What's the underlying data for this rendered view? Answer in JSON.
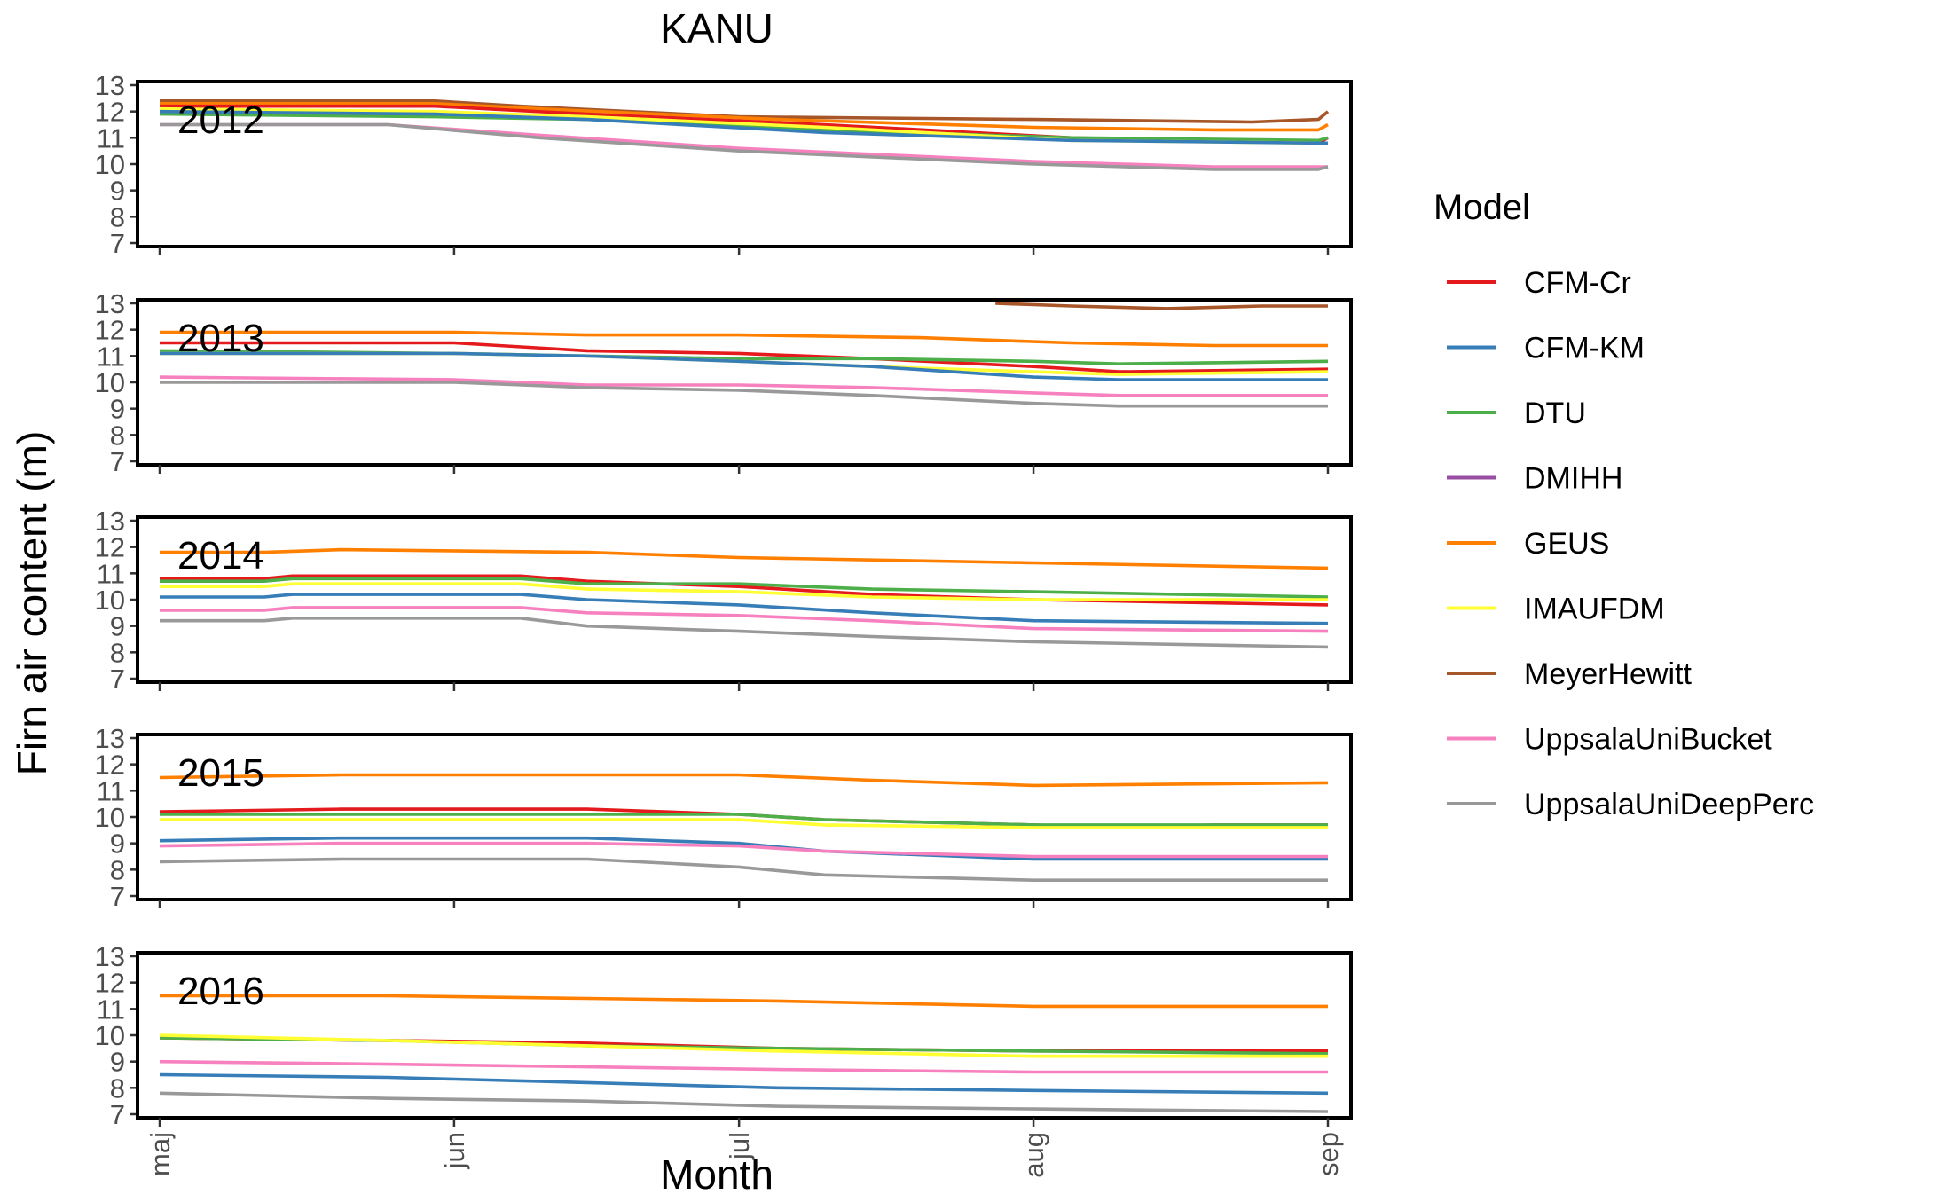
{
  "chart_data": {
    "type": "line",
    "title": "KANU",
    "xlabel": "Month",
    "ylabel": "Firn air content (m)",
    "legend_title": "Model",
    "legend_position": "right",
    "ylim": [
      7,
      13
    ],
    "yticks": [
      7,
      8,
      9,
      10,
      11,
      12,
      13
    ],
    "x_tick_labels": [
      "maj",
      "jun",
      "jul",
      "aug",
      "sep"
    ],
    "xlim": [
      "05-01",
      "09-01"
    ],
    "grid": false,
    "series_meta": [
      {
        "name": "CFM-Cr",
        "color": "#E41A1C"
      },
      {
        "name": "CFM-KM",
        "color": "#377EB8"
      },
      {
        "name": "DTU",
        "color": "#4DAF4A"
      },
      {
        "name": "DMIHH",
        "color": "#984EA3"
      },
      {
        "name": "GEUS",
        "color": "#FF7F00"
      },
      {
        "name": "IMAUFDM",
        "color": "#FFFF33"
      },
      {
        "name": "MeyerHewitt",
        "color": "#A65628"
      },
      {
        "name": "UppsalaUniBucket",
        "color": "#F781BF"
      },
      {
        "name": "UppsalaUniDeepPerc",
        "color": "#999999"
      }
    ],
    "panels": [
      {
        "label": "2012",
        "series": [
          {
            "name": "MeyerHewitt",
            "x": [
              "05-01",
              "05-30",
              "06-08",
              "07-01",
              "08-01",
              "08-24",
              "08-31",
              "09-01"
            ],
            "y": [
              12.4,
              12.4,
              12.2,
              11.8,
              11.7,
              11.6,
              11.7,
              12.0
            ]
          },
          {
            "name": "GEUS",
            "x": [
              "05-01",
              "05-30",
              "06-10",
              "07-05",
              "08-01",
              "08-20",
              "08-31",
              "09-01"
            ],
            "y": [
              12.3,
              12.3,
              12.1,
              11.7,
              11.4,
              11.3,
              11.3,
              11.5
            ]
          },
          {
            "name": "CFM-Cr",
            "x": [
              "05-01",
              "05-30",
              "06-15",
              "07-10",
              "08-05",
              "08-31",
              "09-01"
            ],
            "y": [
              12.2,
              12.2,
              11.9,
              11.5,
              11.0,
              10.8,
              11.0
            ]
          },
          {
            "name": "DTU",
            "x": [
              "05-01",
              "05-30",
              "06-15",
              "07-10",
              "08-05",
              "08-31",
              "09-01"
            ],
            "y": [
              11.9,
              11.8,
              11.7,
              11.3,
              11.0,
              10.9,
              11.0
            ]
          },
          {
            "name": "IMAUFDM",
            "x": [
              "05-01",
              "05-30",
              "06-15",
              "07-10",
              "08-05",
              "08-31",
              "09-01"
            ],
            "y": [
              12.1,
              12.0,
              11.8,
              11.4,
              10.9,
              10.8,
              10.8
            ]
          },
          {
            "name": "CFM-KM",
            "x": [
              "05-01",
              "05-30",
              "06-15",
              "07-10",
              "08-05",
              "08-31",
              "09-01"
            ],
            "y": [
              12.0,
              11.9,
              11.7,
              11.2,
              10.9,
              10.8,
              10.8
            ]
          },
          {
            "name": "UppsalaUniBucket",
            "x": [
              "05-01",
              "05-25",
              "06-10",
              "07-01",
              "08-01",
              "08-20",
              "09-01"
            ],
            "y": [
              11.5,
              11.5,
              11.1,
              10.6,
              10.1,
              9.9,
              9.9
            ]
          },
          {
            "name": "UppsalaUniDeepPerc",
            "x": [
              "05-01",
              "05-25",
              "06-10",
              "07-01",
              "08-01",
              "08-20",
              "08-31",
              "09-01"
            ],
            "y": [
              11.5,
              11.5,
              11.0,
              10.5,
              10.0,
              9.8,
              9.8,
              9.9
            ]
          }
        ]
      },
      {
        "label": "2013",
        "series": [
          {
            "name": "MeyerHewitt",
            "x": [
              "07-28",
              "08-05",
              "08-15",
              "08-25",
              "09-01"
            ],
            "y": [
              13.0,
              12.9,
              12.8,
              12.9,
              12.9
            ]
          },
          {
            "name": "GEUS",
            "x": [
              "05-01",
              "06-01",
              "06-15",
              "07-01",
              "07-20",
              "08-05",
              "08-20",
              "09-01"
            ],
            "y": [
              11.9,
              11.9,
              11.8,
              11.8,
              11.7,
              11.5,
              11.4,
              11.4
            ]
          },
          {
            "name": "CFM-Cr",
            "x": [
              "05-01",
              "06-01",
              "06-15",
              "07-01",
              "07-15",
              "08-01",
              "08-10",
              "09-01"
            ],
            "y": [
              11.5,
              11.5,
              11.2,
              11.1,
              10.9,
              10.6,
              10.4,
              10.5
            ]
          },
          {
            "name": "DTU",
            "x": [
              "05-01",
              "06-01",
              "06-15",
              "07-01",
              "07-15",
              "08-01",
              "08-10",
              "09-01"
            ],
            "y": [
              11.2,
              11.1,
              11.0,
              10.9,
              10.9,
              10.8,
              10.7,
              10.8
            ]
          },
          {
            "name": "IMAUFDM",
            "x": [
              "05-01",
              "06-01",
              "06-15",
              "07-01",
              "07-15",
              "08-01",
              "08-10",
              "09-01"
            ],
            "y": [
              11.1,
              11.1,
              11.0,
              10.8,
              10.6,
              10.4,
              10.3,
              10.4
            ]
          },
          {
            "name": "CFM-KM",
            "x": [
              "05-01",
              "06-01",
              "06-15",
              "07-01",
              "07-15",
              "08-01",
              "08-10",
              "09-01"
            ],
            "y": [
              11.1,
              11.1,
              11.0,
              10.8,
              10.6,
              10.2,
              10.1,
              10.1
            ]
          },
          {
            "name": "UppsalaUniBucket",
            "x": [
              "05-01",
              "06-01",
              "06-15",
              "07-01",
              "07-15",
              "08-01",
              "08-10",
              "09-01"
            ],
            "y": [
              10.2,
              10.1,
              9.9,
              9.9,
              9.8,
              9.6,
              9.5,
              9.5
            ]
          },
          {
            "name": "UppsalaUniDeepPerc",
            "x": [
              "05-01",
              "06-01",
              "06-15",
              "07-01",
              "07-15",
              "08-01",
              "08-10",
              "09-01"
            ],
            "y": [
              10.0,
              10.0,
              9.8,
              9.7,
              9.5,
              9.2,
              9.1,
              9.1
            ]
          }
        ]
      },
      {
        "label": "2014",
        "series": [
          {
            "name": "GEUS",
            "x": [
              "05-01",
              "05-12",
              "05-20",
              "06-15",
              "07-01",
              "08-01",
              "09-01"
            ],
            "y": [
              11.8,
              11.8,
              11.9,
              11.8,
              11.6,
              11.4,
              11.2
            ]
          },
          {
            "name": "CFM-Cr",
            "x": [
              "05-01",
              "05-12",
              "05-15",
              "06-08",
              "06-15",
              "07-01",
              "07-15",
              "08-01",
              "09-01"
            ],
            "y": [
              10.8,
              10.8,
              10.9,
              10.9,
              10.7,
              10.5,
              10.2,
              10.0,
              9.8
            ]
          },
          {
            "name": "DTU",
            "x": [
              "05-01",
              "05-12",
              "05-15",
              "06-08",
              "06-15",
              "07-01",
              "07-15",
              "08-01",
              "09-01"
            ],
            "y": [
              10.7,
              10.7,
              10.8,
              10.8,
              10.6,
              10.6,
              10.4,
              10.3,
              10.1
            ]
          },
          {
            "name": "IMAUFDM",
            "x": [
              "05-01",
              "05-12",
              "05-15",
              "06-08",
              "06-15",
              "07-01",
              "07-15",
              "08-01",
              "09-01"
            ],
            "y": [
              10.5,
              10.5,
              10.6,
              10.6,
              10.4,
              10.3,
              10.1,
              10.0,
              10.0
            ]
          },
          {
            "name": "CFM-KM",
            "x": [
              "05-01",
              "05-12",
              "05-15",
              "06-08",
              "06-15",
              "07-01",
              "07-15",
              "08-01",
              "09-01"
            ],
            "y": [
              10.1,
              10.1,
              10.2,
              10.2,
              10.0,
              9.8,
              9.5,
              9.2,
              9.1
            ]
          },
          {
            "name": "UppsalaUniBucket",
            "x": [
              "05-01",
              "05-12",
              "05-15",
              "06-08",
              "06-15",
              "07-01",
              "07-15",
              "08-01",
              "09-01"
            ],
            "y": [
              9.6,
              9.6,
              9.7,
              9.7,
              9.5,
              9.4,
              9.2,
              8.9,
              8.8
            ]
          },
          {
            "name": "UppsalaUniDeepPerc",
            "x": [
              "05-01",
              "05-12",
              "05-15",
              "06-08",
              "06-15",
              "07-01",
              "07-15",
              "08-01",
              "09-01"
            ],
            "y": [
              9.2,
              9.2,
              9.3,
              9.3,
              9.0,
              8.8,
              8.6,
              8.4,
              8.2
            ]
          }
        ]
      },
      {
        "label": "2015",
        "series": [
          {
            "name": "GEUS",
            "x": [
              "05-01",
              "05-20",
              "06-15",
              "07-01",
              "07-15",
              "08-01",
              "09-01"
            ],
            "y": [
              11.5,
              11.6,
              11.6,
              11.6,
              11.4,
              11.2,
              11.3
            ]
          },
          {
            "name": "CFM-Cr",
            "x": [
              "05-01",
              "05-20",
              "06-15",
              "07-01",
              "07-10",
              "08-01",
              "08-10",
              "08-20",
              "09-01"
            ],
            "y": [
              10.2,
              10.3,
              10.3,
              10.1,
              9.9,
              9.7,
              9.6,
              9.7,
              9.7
            ]
          },
          {
            "name": "DTU",
            "x": [
              "05-01",
              "05-20",
              "06-15",
              "07-01",
              "07-10",
              "08-01",
              "09-01"
            ],
            "y": [
              10.1,
              10.1,
              10.1,
              10.1,
              9.9,
              9.7,
              9.7
            ]
          },
          {
            "name": "IMAUFDM",
            "x": [
              "05-01",
              "05-20",
              "06-15",
              "07-01",
              "07-10",
              "08-01",
              "09-01"
            ],
            "y": [
              9.9,
              9.9,
              9.9,
              9.9,
              9.7,
              9.6,
              9.6
            ]
          },
          {
            "name": "CFM-KM",
            "x": [
              "05-01",
              "05-20",
              "06-15",
              "07-01",
              "07-10",
              "08-01",
              "09-01"
            ],
            "y": [
              9.1,
              9.2,
              9.2,
              9.0,
              8.7,
              8.4,
              8.4
            ]
          },
          {
            "name": "UppsalaUniBucket",
            "x": [
              "05-01",
              "05-20",
              "06-15",
              "07-01",
              "07-10",
              "08-01",
              "09-01"
            ],
            "y": [
              8.9,
              9.0,
              9.0,
              8.9,
              8.7,
              8.5,
              8.5
            ]
          },
          {
            "name": "UppsalaUniDeepPerc",
            "x": [
              "05-01",
              "05-20",
              "06-15",
              "07-01",
              "07-10",
              "08-01",
              "09-01"
            ],
            "y": [
              8.3,
              8.4,
              8.4,
              8.1,
              7.8,
              7.6,
              7.6
            ]
          }
        ]
      },
      {
        "label": "2016",
        "series": [
          {
            "name": "GEUS",
            "x": [
              "05-01",
              "05-25",
              "06-15",
              "07-05",
              "08-01",
              "09-01"
            ],
            "y": [
              11.5,
              11.5,
              11.4,
              11.3,
              11.1,
              11.1
            ]
          },
          {
            "name": "CFM-Cr",
            "x": [
              "05-01",
              "05-25",
              "06-15",
              "07-05",
              "08-01",
              "09-01"
            ],
            "y": [
              9.9,
              9.8,
              9.7,
              9.5,
              9.4,
              9.4
            ]
          },
          {
            "name": "DTU",
            "x": [
              "05-01",
              "05-25",
              "06-15",
              "07-05",
              "08-01",
              "09-01"
            ],
            "y": [
              9.9,
              9.8,
              9.6,
              9.5,
              9.4,
              9.3
            ]
          },
          {
            "name": "IMAUFDM",
            "x": [
              "05-01",
              "05-25",
              "06-15",
              "07-05",
              "08-01",
              "09-01"
            ],
            "y": [
              10.0,
              9.8,
              9.6,
              9.4,
              9.2,
              9.2
            ]
          },
          {
            "name": "UppsalaUniBucket",
            "x": [
              "05-01",
              "05-25",
              "06-15",
              "07-05",
              "08-01",
              "09-01"
            ],
            "y": [
              9.0,
              8.9,
              8.8,
              8.7,
              8.6,
              8.6
            ]
          },
          {
            "name": "CFM-KM",
            "x": [
              "05-01",
              "05-25",
              "06-15",
              "07-05",
              "08-01",
              "09-01"
            ],
            "y": [
              8.5,
              8.4,
              8.2,
              8.0,
              7.9,
              7.8
            ]
          },
          {
            "name": "UppsalaUniDeepPerc",
            "x": [
              "05-01",
              "05-25",
              "06-15",
              "07-05",
              "08-01",
              "09-01"
            ],
            "y": [
              7.8,
              7.6,
              7.5,
              7.3,
              7.2,
              7.1
            ]
          }
        ]
      }
    ]
  }
}
